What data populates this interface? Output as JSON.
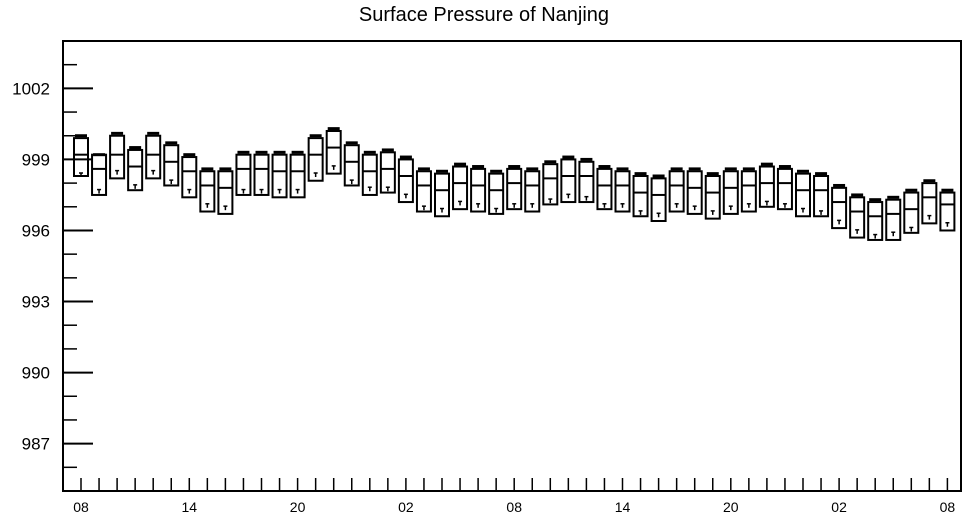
{
  "chart_data": {
    "type": "box",
    "title": "Surface Pressure of Nanjing",
    "xlabel": "",
    "ylabel": "",
    "ylim": [
      985,
      1004
    ],
    "y_ticks": [
      "1002",
      "999",
      "996",
      "993",
      "990",
      "987"
    ],
    "x_ticks": [
      "08",
      "14",
      "20",
      "02",
      "08",
      "14",
      "20",
      "02",
      "08"
    ],
    "grid": false,
    "boxes": [
      {
        "x": 0,
        "max": 1000.0,
        "upper": 999.9,
        "median": 999.2,
        "lower": 998.3,
        "min": 998.3
      },
      {
        "x": 1,
        "max": 999.2,
        "upper": 999.2,
        "median": 998.6,
        "lower": 997.5,
        "min": 997.6
      },
      {
        "x": 2,
        "max": 1000.1,
        "upper": 1000.0,
        "median": 999.2,
        "lower": 998.2,
        "min": 998.4
      },
      {
        "x": 3,
        "max": 999.5,
        "upper": 999.4,
        "median": 998.7,
        "lower": 997.7,
        "min": 997.8
      },
      {
        "x": 4,
        "max": 1000.1,
        "upper": 1000.0,
        "median": 999.2,
        "lower": 998.2,
        "min": 998.4
      },
      {
        "x": 5,
        "max": 999.7,
        "upper": 999.6,
        "median": 998.9,
        "lower": 997.9,
        "min": 998.0
      },
      {
        "x": 6,
        "max": 999.2,
        "upper": 999.1,
        "median": 998.5,
        "lower": 997.4,
        "min": 997.6
      },
      {
        "x": 7,
        "max": 998.6,
        "upper": 998.5,
        "median": 997.9,
        "lower": 996.8,
        "min": 997.0
      },
      {
        "x": 8,
        "max": 998.6,
        "upper": 998.5,
        "median": 997.8,
        "lower": 996.7,
        "min": 996.9
      },
      {
        "x": 9,
        "max": 999.3,
        "upper": 999.2,
        "median": 998.6,
        "lower": 997.5,
        "min": 997.6
      },
      {
        "x": 10,
        "max": 999.3,
        "upper": 999.2,
        "median": 998.6,
        "lower": 997.5,
        "min": 997.6
      },
      {
        "x": 11,
        "max": 999.3,
        "upper": 999.2,
        "median": 998.5,
        "lower": 997.4,
        "min": 997.6
      },
      {
        "x": 12,
        "max": 999.3,
        "upper": 999.2,
        "median": 998.5,
        "lower": 997.4,
        "min": 997.6
      },
      {
        "x": 13,
        "max": 1000.0,
        "upper": 999.9,
        "median": 999.2,
        "lower": 998.1,
        "min": 998.3
      },
      {
        "x": 14,
        "max": 1000.3,
        "upper": 1000.2,
        "median": 999.5,
        "lower": 998.4,
        "min": 998.6
      },
      {
        "x": 15,
        "max": 999.7,
        "upper": 999.6,
        "median": 998.9,
        "lower": 997.9,
        "min": 998.0
      },
      {
        "x": 16,
        "max": 999.3,
        "upper": 999.2,
        "median": 998.5,
        "lower": 997.5,
        "min": 997.7
      },
      {
        "x": 17,
        "max": 999.4,
        "upper": 999.3,
        "median": 998.6,
        "lower": 997.6,
        "min": 997.7
      },
      {
        "x": 18,
        "max": 999.1,
        "upper": 999.0,
        "median": 998.3,
        "lower": 997.2,
        "min": 997.4
      },
      {
        "x": 19,
        "max": 998.6,
        "upper": 998.5,
        "median": 997.9,
        "lower": 996.8,
        "min": 996.9
      },
      {
        "x": 20,
        "max": 998.5,
        "upper": 998.4,
        "median": 997.7,
        "lower": 996.6,
        "min": 996.8
      },
      {
        "x": 21,
        "max": 998.8,
        "upper": 998.7,
        "median": 998.0,
        "lower": 996.9,
        "min": 997.1
      },
      {
        "x": 22,
        "max": 998.7,
        "upper": 998.6,
        "median": 997.9,
        "lower": 996.8,
        "min": 997.0
      },
      {
        "x": 23,
        "max": 998.5,
        "upper": 998.4,
        "median": 997.7,
        "lower": 996.7,
        "min": 996.8
      },
      {
        "x": 24,
        "max": 998.7,
        "upper": 998.6,
        "median": 998.0,
        "lower": 996.9,
        "min": 997.0
      },
      {
        "x": 25,
        "max": 998.6,
        "upper": 998.5,
        "median": 997.9,
        "lower": 996.8,
        "min": 997.0
      },
      {
        "x": 26,
        "max": 998.9,
        "upper": 998.8,
        "median": 998.2,
        "lower": 997.1,
        "min": 997.2
      },
      {
        "x": 27,
        "max": 999.1,
        "upper": 999.0,
        "median": 998.3,
        "lower": 997.2,
        "min": 997.4
      },
      {
        "x": 28,
        "max": 999.0,
        "upper": 998.9,
        "median": 998.3,
        "lower": 997.2,
        "min": 997.3
      },
      {
        "x": 29,
        "max": 998.7,
        "upper": 998.6,
        "median": 997.9,
        "lower": 996.9,
        "min": 997.0
      },
      {
        "x": 30,
        "max": 998.6,
        "upper": 998.5,
        "median": 997.9,
        "lower": 996.8,
        "min": 997.0
      },
      {
        "x": 31,
        "max": 998.4,
        "upper": 998.3,
        "median": 997.6,
        "lower": 996.6,
        "min": 996.7
      },
      {
        "x": 32,
        "max": 998.3,
        "upper": 998.2,
        "median": 997.5,
        "lower": 996.4,
        "min": 996.6
      },
      {
        "x": 33,
        "max": 998.6,
        "upper": 998.5,
        "median": 997.9,
        "lower": 996.8,
        "min": 997.0
      },
      {
        "x": 34,
        "max": 998.6,
        "upper": 998.5,
        "median": 997.8,
        "lower": 996.7,
        "min": 996.9
      },
      {
        "x": 35,
        "max": 998.4,
        "upper": 998.3,
        "median": 997.6,
        "lower": 996.5,
        "min": 996.7
      },
      {
        "x": 36,
        "max": 998.6,
        "upper": 998.5,
        "median": 997.8,
        "lower": 996.7,
        "min": 996.9
      },
      {
        "x": 37,
        "max": 998.6,
        "upper": 998.5,
        "median": 997.9,
        "lower": 996.8,
        "min": 997.0
      },
      {
        "x": 38,
        "max": 998.8,
        "upper": 998.7,
        "median": 998.0,
        "lower": 997.0,
        "min": 997.1
      },
      {
        "x": 39,
        "max": 998.7,
        "upper": 998.6,
        "median": 998.0,
        "lower": 996.9,
        "min": 997.0
      },
      {
        "x": 40,
        "max": 998.5,
        "upper": 998.4,
        "median": 997.7,
        "lower": 996.6,
        "min": 996.8
      },
      {
        "x": 41,
        "max": 998.4,
        "upper": 998.3,
        "median": 997.7,
        "lower": 996.6,
        "min": 996.7
      },
      {
        "x": 42,
        "max": 997.9,
        "upper": 997.8,
        "median": 997.2,
        "lower": 996.1,
        "min": 996.3
      },
      {
        "x": 43,
        "max": 997.5,
        "upper": 997.4,
        "median": 996.8,
        "lower": 995.7,
        "min": 995.9
      },
      {
        "x": 44,
        "max": 997.3,
        "upper": 997.2,
        "median": 996.6,
        "lower": 995.6,
        "min": 995.7
      },
      {
        "x": 45,
        "max": 997.4,
        "upper": 997.3,
        "median": 996.7,
        "lower": 995.6,
        "min": 995.8
      },
      {
        "x": 46,
        "max": 997.7,
        "upper": 997.6,
        "median": 996.9,
        "lower": 995.9,
        "min": 996.0
      },
      {
        "x": 47,
        "max": 998.1,
        "upper": 998.0,
        "median": 997.4,
        "lower": 996.3,
        "min": 996.5
      },
      {
        "x": 48,
        "max": 997.7,
        "upper": 997.6,
        "median": 997.1,
        "lower": 996.0,
        "min": 996.2
      }
    ]
  }
}
